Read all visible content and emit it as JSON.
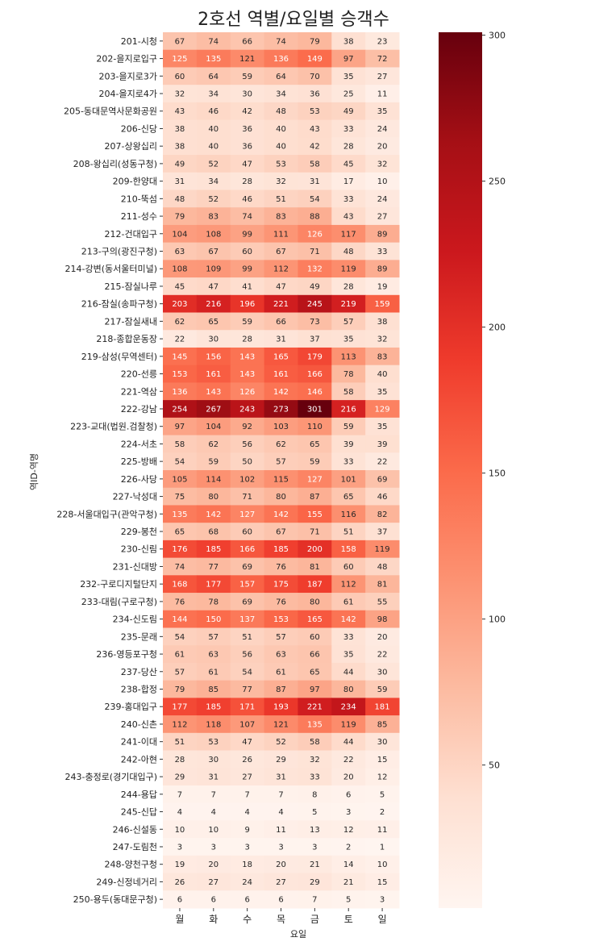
{
  "chart_data": {
    "type": "heatmap",
    "title": "2호선 역별/요일별 승객수",
    "xlabel": "요일",
    "ylabel": "역ID-역명",
    "columns": [
      "월",
      "화",
      "수",
      "목",
      "금",
      "토",
      "일"
    ],
    "rows": [
      "201-시청",
      "202-을지로입구",
      "203-을지로3가",
      "204-을지로4가",
      "205-동대문역사문화공원",
      "206-신당",
      "207-상왕십리",
      "208-왕십리(성동구청)",
      "209-한양대",
      "210-뚝섬",
      "211-성수",
      "212-건대입구",
      "213-구의(광진구청)",
      "214-강변(동서울터미널)",
      "215-잠실나루",
      "216-잠실(송파구청)",
      "217-잠실새내",
      "218-종합운동장",
      "219-삼성(무역센터)",
      "220-선릉",
      "221-역삼",
      "222-강남",
      "223-교대(법원.검찰청)",
      "224-서초",
      "225-방배",
      "226-사당",
      "227-낙성대",
      "228-서울대입구(관악구청)",
      "229-봉천",
      "230-신림",
      "231-신대방",
      "232-구로디지털단지",
      "233-대림(구로구청)",
      "234-신도림",
      "235-문래",
      "236-영등포구청",
      "237-당산",
      "238-합정",
      "239-홍대입구",
      "240-신촌",
      "241-이대",
      "242-아현",
      "243-충정로(경기대입구)",
      "244-용답",
      "245-신답",
      "246-신설동",
      "247-도림천",
      "248-양천구청",
      "249-신정네거리",
      "250-용두(동대문구청)"
    ],
    "values": [
      [
        67,
        74,
        66,
        74,
        79,
        38,
        23
      ],
      [
        125,
        135,
        121,
        136,
        149,
        97,
        72
      ],
      [
        60,
        64,
        59,
        64,
        70,
        35,
        27
      ],
      [
        32,
        34,
        30,
        34,
        36,
        25,
        11
      ],
      [
        43,
        46,
        42,
        48,
        53,
        49,
        35
      ],
      [
        38,
        40,
        36,
        40,
        43,
        33,
        24
      ],
      [
        38,
        40,
        36,
        40,
        42,
        28,
        20
      ],
      [
        49,
        52,
        47,
        53,
        58,
        45,
        32
      ],
      [
        31,
        34,
        28,
        32,
        31,
        17,
        10
      ],
      [
        48,
        52,
        46,
        51,
        54,
        33,
        24
      ],
      [
        79,
        83,
        74,
        83,
        88,
        43,
        27
      ],
      [
        104,
        108,
        99,
        111,
        126,
        117,
        89
      ],
      [
        63,
        67,
        60,
        67,
        71,
        48,
        33
      ],
      [
        108,
        109,
        99,
        112,
        132,
        119,
        89
      ],
      [
        45,
        47,
        41,
        47,
        49,
        28,
        19
      ],
      [
        203,
        216,
        196,
        221,
        245,
        219,
        159
      ],
      [
        62,
        65,
        59,
        66,
        73,
        57,
        38
      ],
      [
        22,
        30,
        28,
        31,
        37,
        35,
        32
      ],
      [
        145,
        156,
        143,
        165,
        179,
        113,
        83
      ],
      [
        153,
        161,
        143,
        161,
        166,
        78,
        40
      ],
      [
        136,
        143,
        126,
        142,
        146,
        58,
        35
      ],
      [
        254,
        267,
        243,
        273,
        301,
        216,
        129
      ],
      [
        97,
        104,
        92,
        103,
        110,
        59,
        35
      ],
      [
        58,
        62,
        56,
        62,
        65,
        39,
        39
      ],
      [
        54,
        59,
        50,
        57,
        59,
        33,
        22
      ],
      [
        105,
        114,
        102,
        115,
        127,
        101,
        69
      ],
      [
        75,
        80,
        71,
        80,
        87,
        65,
        46
      ],
      [
        135,
        142,
        127,
        142,
        155,
        116,
        82
      ],
      [
        65,
        68,
        60,
        67,
        71,
        51,
        37
      ],
      [
        176,
        185,
        166,
        185,
        200,
        158,
        119
      ],
      [
        74,
        77,
        69,
        76,
        81,
        60,
        48
      ],
      [
        168,
        177,
        157,
        175,
        187,
        112,
        81
      ],
      [
        76,
        78,
        69,
        76,
        80,
        61,
        55
      ],
      [
        144,
        150,
        137,
        153,
        165,
        142,
        98
      ],
      [
        54,
        57,
        51,
        57,
        60,
        33,
        20
      ],
      [
        61,
        63,
        56,
        63,
        66,
        35,
        22
      ],
      [
        57,
        61,
        54,
        61,
        65,
        44,
        30
      ],
      [
        79,
        85,
        77,
        87,
        97,
        80,
        59
      ],
      [
        177,
        185,
        171,
        193,
        221,
        234,
        181
      ],
      [
        112,
        118,
        107,
        121,
        135,
        119,
        85
      ],
      [
        51,
        53,
        47,
        52,
        58,
        44,
        30
      ],
      [
        28,
        30,
        26,
        29,
        32,
        22,
        15
      ],
      [
        29,
        31,
        27,
        31,
        33,
        20,
        12
      ],
      [
        7,
        7,
        7,
        7,
        8,
        6,
        5
      ],
      [
        4,
        4,
        4,
        4,
        5,
        3,
        2
      ],
      [
        10,
        10,
        9,
        11,
        13,
        12,
        11
      ],
      [
        3,
        3,
        3,
        3,
        3,
        2,
        1
      ],
      [
        19,
        20,
        18,
        20,
        21,
        14,
        10
      ],
      [
        26,
        27,
        24,
        27,
        29,
        21,
        15
      ],
      [
        6,
        6,
        6,
        6,
        7,
        5,
        3
      ]
    ],
    "colorscale": "Reds",
    "colorbar_range": [
      1,
      301
    ],
    "colorbar_ticks": [
      50,
      100,
      150,
      200,
      250,
      300
    ],
    "annotations": "cell values shown",
    "legend": "colorbar at right"
  }
}
